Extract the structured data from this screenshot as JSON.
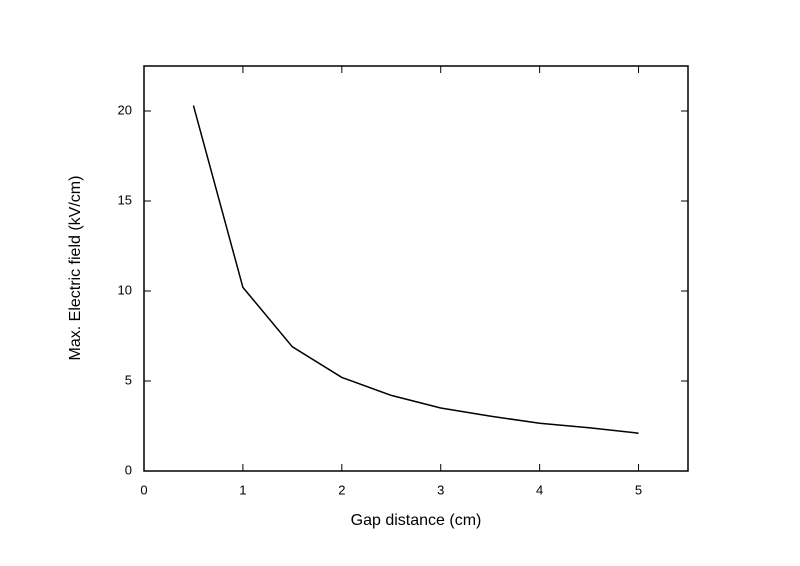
{
  "chart_data": {
    "type": "line",
    "x_label": "Gap distance (cm)",
    "y_label": "Max. Electric field (kV/cm)",
    "x": [
      0.5,
      1,
      1.5,
      2,
      2.5,
      3,
      3.5,
      4,
      4.5,
      5
    ],
    "series": [
      {
        "color": "#000000",
        "values": [
          20.3,
          10.2,
          6.9,
          5.2,
          4.2,
          3.5,
          3.05,
          2.65,
          2.4,
          2.1
        ]
      }
    ],
    "xlim": [
      0,
      5.5
    ],
    "xticks": [
      0,
      1,
      2,
      3,
      4,
      5
    ],
    "ylim": [
      0,
      22.5
    ],
    "yticks": [
      0,
      5,
      10,
      15,
      20
    ]
  }
}
